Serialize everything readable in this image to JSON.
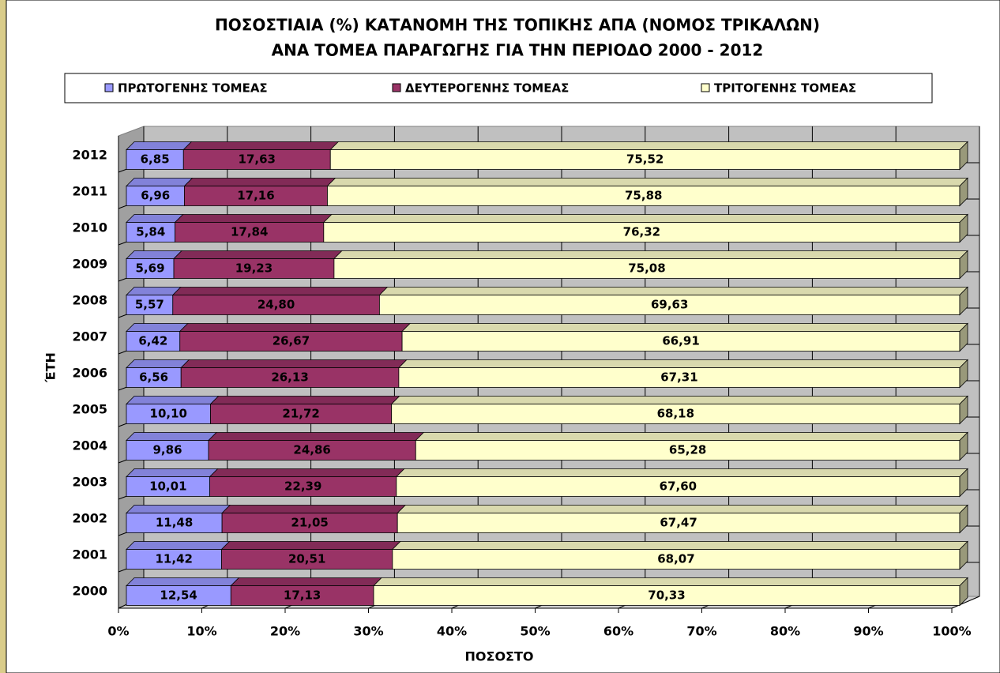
{
  "chart_data": {
    "type": "stacked_bar_horizontal",
    "title": [
      "ΠΟΣΟΣΤΙΑΙΑ (%) ΚΑΤΑΝΟΜΗ ΤΗΣ ΤΟΠΙΚΗΣ ΑΠΑ (ΝΟΜΟΣ ΤΡΙΚΑΛΩΝ)",
      "ΑΝΑ ΤΟΜΕΑ ΠΑΡΑΓΩΓΗΣ ΓΙΑ ΤΗΝ ΠΕΡΙΟΔΟ 2000 - 2012"
    ],
    "x_label": "ΠΟΣΟΣΤΟ",
    "y_label": "ΈΤΗ",
    "categories": [
      "2000",
      "2001",
      "2002",
      "2003",
      "2004",
      "2005",
      "2006",
      "2007",
      "2008",
      "2009",
      "2010",
      "2011",
      "2012"
    ],
    "series": [
      {
        "name": "ΠΡΩΤΟΓΕΝΗΣ ΤΟΜΕΑΣ",
        "color": "#9999ff",
        "values": [
          12.54,
          11.42,
          11.48,
          10.01,
          9.86,
          10.1,
          6.56,
          6.42,
          5.57,
          5.69,
          5.84,
          6.96,
          6.85
        ],
        "value_labels": [
          "12,54",
          "11,42",
          "11,48",
          "10,01",
          "9,86",
          "10,10",
          "6,56",
          "6,42",
          "5,57",
          "5,69",
          "5,84",
          "6,96",
          "6,85"
        ]
      },
      {
        "name": "ΔΕΥΤΕΡΟΓΕΝΗΣ ΤΟΜΕΑΣ",
        "color": "#993366",
        "values": [
          17.13,
          20.51,
          21.05,
          22.39,
          24.86,
          21.72,
          26.13,
          26.67,
          24.8,
          19.23,
          17.84,
          17.16,
          17.63
        ],
        "value_labels": [
          "17,13",
          "20,51",
          "21,05",
          "22,39",
          "24,86",
          "21,72",
          "26,13",
          "26,67",
          "24,80",
          "19,23",
          "17,84",
          "17,16",
          "17,63"
        ]
      },
      {
        "name": "ΤΡΙΤΟΓΕΝΗΣ ΤΟΜΕΑΣ",
        "color": "#ffffcc",
        "values": [
          70.33,
          68.07,
          67.47,
          67.6,
          65.28,
          68.18,
          67.31,
          66.91,
          69.63,
          75.08,
          76.32,
          75.88,
          75.52
        ],
        "value_labels": [
          "70,33",
          "68,07",
          "67,47",
          "67,60",
          "65,28",
          "68,18",
          "67,31",
          "66,91",
          "69,63",
          "75,08",
          "76,32",
          "75,88",
          "75,52"
        ]
      }
    ],
    "xlim": [
      0,
      100
    ],
    "xticks": [
      {
        "value": 0,
        "label": "0%"
      },
      {
        "value": 10,
        "label": "10%"
      },
      {
        "value": 20,
        "label": "20%"
      },
      {
        "value": 30,
        "label": "30%"
      },
      {
        "value": 40,
        "label": "40%"
      },
      {
        "value": 50,
        "label": "50%"
      },
      {
        "value": 60,
        "label": "60%"
      },
      {
        "value": 70,
        "label": "70%"
      },
      {
        "value": 80,
        "label": "80%"
      },
      {
        "value": 90,
        "label": "90%"
      },
      {
        "value": 100,
        "label": "100%"
      }
    ],
    "grid": true
  }
}
